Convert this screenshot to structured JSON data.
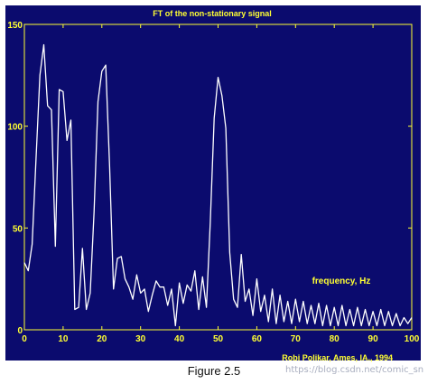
{
  "figure": {
    "caption": "Figure 2.5",
    "watermark": "https://blog.csdn.net/comic_sn",
    "colors": {
      "background": "#0b0b6e",
      "line": "#ffffff",
      "text": "#ffff33"
    }
  },
  "chart_data": {
    "type": "line",
    "title": "FT of the non-stationary signal",
    "annotation": "frequency, Hz",
    "credit": "Robi Polikar, Ames, IA., 1994",
    "xlim": [
      0,
      100
    ],
    "ylim": [
      0,
      150
    ],
    "xticks": [
      "0",
      "10",
      "20",
      "30",
      "40",
      "50",
      "60",
      "70",
      "80",
      "90",
      "100"
    ],
    "yticks": [
      "0",
      "50",
      "100",
      "150"
    ],
    "grid": false,
    "series": [
      {
        "x": [
          0,
          1,
          2,
          3,
          4,
          5,
          6,
          7,
          8,
          9,
          10,
          11,
          12,
          13,
          14,
          15,
          16,
          17,
          18,
          19,
          20,
          21,
          22,
          23,
          24,
          25,
          26,
          27,
          28,
          29,
          30,
          31,
          32,
          33,
          34,
          35,
          36,
          37,
          38,
          39,
          40,
          41,
          42,
          43,
          44,
          45,
          46,
          47,
          48,
          49,
          50,
          51,
          52,
          53,
          54,
          55,
          56,
          57,
          58,
          59,
          60,
          61,
          62,
          63,
          64,
          65,
          66,
          67,
          68,
          69,
          70,
          71,
          72,
          73,
          74,
          75,
          76,
          77,
          78,
          79,
          80,
          81,
          82,
          83,
          84,
          85,
          86,
          87,
          88,
          89,
          90,
          91,
          92,
          93,
          94,
          95,
          96,
          97,
          98,
          99,
          100
        ],
        "values": [
          33,
          29,
          42,
          84,
          125,
          140,
          110,
          108,
          41,
          118,
          117,
          93,
          103,
          10,
          11,
          40,
          10,
          18,
          58,
          112,
          127,
          130,
          80,
          20,
          35,
          36,
          25,
          21,
          15,
          27,
          18,
          20,
          9,
          17,
          24,
          21,
          21,
          12,
          20,
          2,
          23,
          13,
          22,
          19,
          29,
          10,
          26,
          11,
          53,
          104,
          124,
          115,
          99,
          38,
          15,
          11,
          37,
          14,
          20,
          7,
          25,
          9,
          17,
          4,
          20,
          3,
          17,
          4,
          14,
          3,
          15,
          4,
          14,
          3,
          12,
          3,
          13,
          2,
          12,
          2,
          11,
          2,
          12,
          2,
          10,
          2,
          11,
          2,
          10,
          2,
          9,
          2,
          10,
          2,
          9,
          2,
          8,
          2,
          6,
          3,
          6
        ]
      }
    ]
  }
}
